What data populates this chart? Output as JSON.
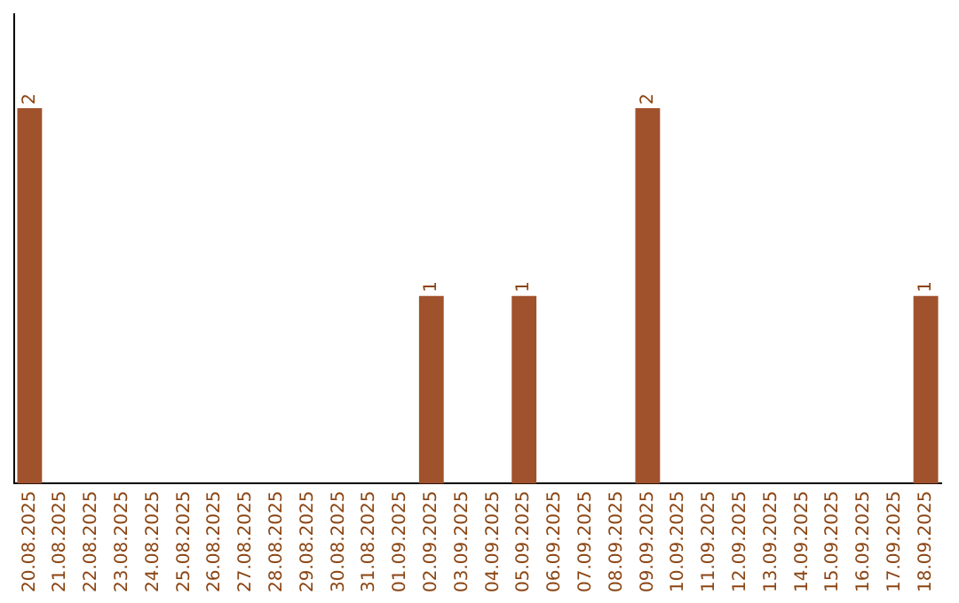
{
  "chart_data": {
    "type": "bar",
    "categories": [
      "20.08.2025",
      "21.08.2025",
      "22.08.2025",
      "23.08.2025",
      "24.08.2025",
      "25.08.2025",
      "26.08.2025",
      "27.08.2025",
      "28.08.2025",
      "29.08.2025",
      "30.08.2025",
      "31.08.2025",
      "01.09.2025",
      "02.09.2025",
      "03.09.2025",
      "04.09.2025",
      "05.09.2025",
      "06.09.2025",
      "07.09.2025",
      "08.09.2025",
      "09.09.2025",
      "10.09.2025",
      "11.09.2025",
      "12.09.2025",
      "13.09.2025",
      "14.09.2025",
      "15.09.2025",
      "16.09.2025",
      "17.09.2025",
      "18.09.2025"
    ],
    "values": [
      2,
      0,
      0,
      0,
      0,
      0,
      0,
      0,
      0,
      0,
      0,
      0,
      0,
      1,
      0,
      0,
      1,
      0,
      0,
      0,
      2,
      0,
      0,
      0,
      0,
      0,
      0,
      0,
      0,
      1
    ],
    "value_labels": [
      "2",
      null,
      null,
      null,
      null,
      null,
      null,
      null,
      null,
      null,
      null,
      null,
      null,
      "1",
      null,
      null,
      "1",
      null,
      null,
      null,
      "2",
      null,
      null,
      null,
      null,
      null,
      null,
      null,
      null,
      "1"
    ],
    "color": "#a0522d",
    "tick_labels": "x",
    "grid": false,
    "legend": false
  }
}
